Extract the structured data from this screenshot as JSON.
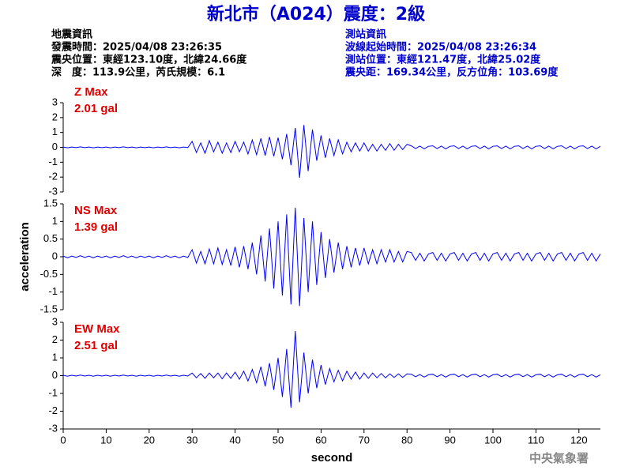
{
  "header": {
    "title": "新北市（A024）震度：2級",
    "left": [
      "地震資訊",
      "發震時間：2025/04/08 23:26:35",
      "震央位置：東經123.10度，北緯24.66度",
      "深　度：113.9公里，芮氏規模：6.1"
    ],
    "right": [
      "測站資訊",
      "波線起始時間：2025/04/08 23:26:34",
      "測站位置：東經121.47度，北緯25.02度",
      "震央距：169.34公里，反方位角：103.69度"
    ]
  },
  "footer": "中央氣象署",
  "chart_data": [
    {
      "type": "line",
      "annotation": [
        "Z Max",
        "2.01 gal"
      ],
      "color": "#0000ff",
      "xlim": [
        0,
        125
      ],
      "ylim": [
        -3,
        3
      ],
      "yticks": [
        -3,
        -2,
        -1,
        0,
        1,
        2,
        3
      ],
      "x": [
        0,
        1,
        2,
        3,
        4,
        5,
        6,
        7,
        8,
        9,
        10,
        11,
        12,
        13,
        14,
        15,
        16,
        17,
        18,
        19,
        20,
        21,
        22,
        23,
        24,
        25,
        26,
        27,
        28,
        29,
        30,
        31,
        32,
        33,
        34,
        35,
        36,
        37,
        38,
        39,
        40,
        41,
        42,
        43,
        44,
        45,
        46,
        47,
        48,
        49,
        50,
        51,
        52,
        53,
        54,
        55,
        56,
        57,
        58,
        59,
        60,
        61,
        62,
        63,
        64,
        65,
        66,
        67,
        68,
        69,
        70,
        71,
        72,
        73,
        74,
        75,
        76,
        77,
        78,
        79,
        80,
        81,
        82,
        83,
        84,
        85,
        86,
        87,
        88,
        89,
        90,
        91,
        92,
        93,
        94,
        95,
        96,
        97,
        98,
        99,
        100,
        101,
        102,
        103,
        104,
        105,
        106,
        107,
        108,
        109,
        110,
        111,
        112,
        113,
        114,
        115,
        116,
        117,
        118,
        119,
        120,
        121,
        122,
        123,
        124,
        125
      ],
      "values": [
        0.02,
        -0.03,
        0.02,
        -0.02,
        0.03,
        -0.02,
        0.02,
        -0.03,
        0.02,
        -0.02,
        0.02,
        -0.03,
        0.02,
        -0.02,
        0.03,
        -0.02,
        0.02,
        -0.03,
        0.02,
        -0.02,
        0.02,
        -0.03,
        0.02,
        -0.02,
        0.03,
        -0.02,
        0.02,
        -0.03,
        0.02,
        -0.02,
        0.4,
        -0.35,
        0.3,
        -0.4,
        0.45,
        -0.3,
        0.35,
        -0.4,
        0.3,
        -0.35,
        0.4,
        -0.3,
        0.35,
        -0.45,
        0.5,
        -0.5,
        0.6,
        -0.55,
        0.7,
        -0.6,
        0.65,
        -0.8,
        0.9,
        -1.2,
        1.3,
        -2.05,
        1.5,
        -1.6,
        1.2,
        -0.9,
        0.8,
        -0.7,
        0.6,
        -0.55,
        0.5,
        -0.45,
        0.35,
        -0.3,
        0.3,
        -0.25,
        0.3,
        -0.25,
        0.2,
        -0.25,
        0.2,
        -0.2,
        0.25,
        -0.2,
        0.2,
        -0.15,
        0.2,
        0.1,
        -0.08,
        0.08,
        -0.1,
        0.07,
        0.1,
        -0.08,
        0.08,
        -0.1,
        0.07,
        0.1,
        -0.08,
        0.08,
        -0.1,
        0.07,
        0.1,
        -0.08,
        0.08,
        -0.1,
        0.07,
        0.1,
        -0.08,
        0.08,
        -0.1,
        0.07,
        0.1,
        -0.08,
        0.08,
        -0.1,
        0.07,
        0.1,
        -0.08,
        0.08,
        -0.1,
        0.07,
        0.1,
        -0.08,
        0.08,
        -0.1,
        0.07,
        0.1,
        -0.08,
        0.08,
        -0.1,
        0.07
      ]
    },
    {
      "type": "line",
      "annotation": [
        "NS Max",
        "1.39 gal"
      ],
      "color": "#0000ff",
      "ylabel": "acceleration",
      "xlim": [
        0,
        125
      ],
      "ylim": [
        -1.5,
        1.5
      ],
      "yticks": [
        -1.5,
        -1,
        -0.5,
        0,
        0.5,
        1,
        1.5
      ],
      "x": [
        0,
        1,
        2,
        3,
        4,
        5,
        6,
        7,
        8,
        9,
        10,
        11,
        12,
        13,
        14,
        15,
        16,
        17,
        18,
        19,
        20,
        21,
        22,
        23,
        24,
        25,
        26,
        27,
        28,
        29,
        30,
        31,
        32,
        33,
        34,
        35,
        36,
        37,
        38,
        39,
        40,
        41,
        42,
        43,
        44,
        45,
        46,
        47,
        48,
        49,
        50,
        51,
        52,
        53,
        54,
        55,
        56,
        57,
        58,
        59,
        60,
        61,
        62,
        63,
        64,
        65,
        66,
        67,
        68,
        69,
        70,
        71,
        72,
        73,
        74,
        75,
        76,
        77,
        78,
        79,
        80,
        81,
        82,
        83,
        84,
        85,
        86,
        87,
        88,
        89,
        90,
        91,
        92,
        93,
        94,
        95,
        96,
        97,
        98,
        99,
        100,
        101,
        102,
        103,
        104,
        105,
        106,
        107,
        108,
        109,
        110,
        111,
        112,
        113,
        114,
        115,
        116,
        117,
        118,
        119,
        120,
        121,
        122,
        123,
        124,
        125
      ],
      "values": [
        0.02,
        -0.03,
        0.02,
        -0.02,
        0.03,
        -0.02,
        0.02,
        -0.03,
        0.02,
        -0.02,
        0.02,
        -0.03,
        0.02,
        -0.02,
        0.03,
        -0.02,
        0.02,
        -0.03,
        0.02,
        -0.02,
        0.02,
        -0.03,
        0.02,
        -0.02,
        0.03,
        -0.02,
        0.02,
        -0.03,
        0.02,
        -0.02,
        0.2,
        -0.18,
        0.15,
        -0.2,
        0.22,
        -0.2,
        0.25,
        -0.22,
        0.2,
        -0.25,
        0.28,
        -0.3,
        0.3,
        -0.35,
        0.4,
        -0.5,
        0.6,
        -0.7,
        0.8,
        -0.9,
        1.0,
        -1.1,
        1.2,
        -1.35,
        1.39,
        -1.4,
        1.1,
        -1.0,
        1.0,
        -0.8,
        0.7,
        -0.6,
        0.5,
        -0.45,
        0.4,
        -0.35,
        0.3,
        -0.3,
        0.25,
        -0.25,
        0.25,
        -0.2,
        0.2,
        -0.2,
        0.2,
        -0.15,
        0.2,
        -0.15,
        0.15,
        -0.15,
        0.15,
        0.12,
        -0.1,
        0.1,
        -0.12,
        0.08,
        0.12,
        -0.1,
        0.1,
        -0.12,
        0.08,
        0.12,
        -0.1,
        0.1,
        -0.12,
        0.08,
        0.12,
        -0.1,
        0.1,
        -0.12,
        0.08,
        0.12,
        -0.1,
        0.1,
        -0.12,
        0.08,
        0.12,
        -0.1,
        0.1,
        -0.12,
        0.08,
        0.12,
        -0.1,
        0.1,
        -0.12,
        0.08,
        0.12,
        -0.1,
        0.1,
        -0.12,
        0.08,
        0.12,
        -0.1,
        0.1,
        -0.12,
        0.08
      ]
    },
    {
      "type": "line",
      "annotation": [
        "EW Max",
        "2.51 gal"
      ],
      "color": "#0000ff",
      "xlabel": "second",
      "xlim": [
        0,
        125
      ],
      "xticks": [
        0,
        10,
        20,
        30,
        40,
        50,
        60,
        70,
        80,
        90,
        100,
        110,
        120
      ],
      "ylim": [
        -3,
        3
      ],
      "yticks": [
        -3,
        -2,
        -1,
        0,
        1,
        2,
        3
      ],
      "x": [
        0,
        1,
        2,
        3,
        4,
        5,
        6,
        7,
        8,
        9,
        10,
        11,
        12,
        13,
        14,
        15,
        16,
        17,
        18,
        19,
        20,
        21,
        22,
        23,
        24,
        25,
        26,
        27,
        28,
        29,
        30,
        31,
        32,
        33,
        34,
        35,
        36,
        37,
        38,
        39,
        40,
        41,
        42,
        43,
        44,
        45,
        46,
        47,
        48,
        49,
        50,
        51,
        52,
        53,
        54,
        55,
        56,
        57,
        58,
        59,
        60,
        61,
        62,
        63,
        64,
        65,
        66,
        67,
        68,
        69,
        70,
        71,
        72,
        73,
        74,
        75,
        76,
        77,
        78,
        79,
        80,
        81,
        82,
        83,
        84,
        85,
        86,
        87,
        88,
        89,
        90,
        91,
        92,
        93,
        94,
        95,
        96,
        97,
        98,
        99,
        100,
        101,
        102,
        103,
        104,
        105,
        106,
        107,
        108,
        109,
        110,
        111,
        112,
        113,
        114,
        115,
        116,
        117,
        118,
        119,
        120,
        121,
        122,
        123,
        124,
        125
      ],
      "values": [
        0.02,
        -0.03,
        0.02,
        -0.02,
        0.03,
        -0.02,
        0.02,
        -0.03,
        0.02,
        -0.02,
        0.02,
        -0.03,
        0.02,
        -0.02,
        0.03,
        -0.02,
        0.02,
        -0.03,
        0.02,
        -0.02,
        0.02,
        -0.03,
        0.02,
        -0.02,
        0.03,
        -0.02,
        0.02,
        -0.03,
        0.02,
        -0.02,
        0.15,
        -0.12,
        0.12,
        -0.15,
        0.15,
        -0.12,
        0.15,
        -0.18,
        0.15,
        -0.15,
        0.2,
        -0.2,
        0.25,
        -0.3,
        0.35,
        -0.4,
        0.5,
        -0.6,
        0.7,
        -0.8,
        1.0,
        -1.2,
        1.5,
        -1.8,
        2.51,
        -1.5,
        1.3,
        -1.0,
        0.9,
        -0.7,
        0.6,
        -0.5,
        0.4,
        -0.35,
        0.3,
        -0.3,
        0.25,
        -0.2,
        0.2,
        -0.2,
        0.15,
        -0.15,
        0.15,
        -0.12,
        0.12,
        -0.12,
        0.1,
        -0.1,
        0.1,
        -0.1,
        0.1,
        0.08,
        -0.06,
        0.06,
        -0.08,
        0.05,
        0.08,
        -0.06,
        0.06,
        -0.08,
        0.05,
        0.08,
        -0.06,
        0.06,
        -0.08,
        0.05,
        0.08,
        -0.06,
        0.06,
        -0.08,
        0.05,
        0.08,
        -0.06,
        0.06,
        -0.08,
        0.05,
        0.08,
        -0.06,
        0.06,
        -0.08,
        0.05,
        0.08,
        -0.06,
        0.06,
        -0.08,
        0.05,
        0.08,
        -0.06,
        0.06,
        -0.08,
        0.05,
        0.08,
        -0.06,
        0.06,
        -0.08,
        0.05
      ]
    }
  ]
}
